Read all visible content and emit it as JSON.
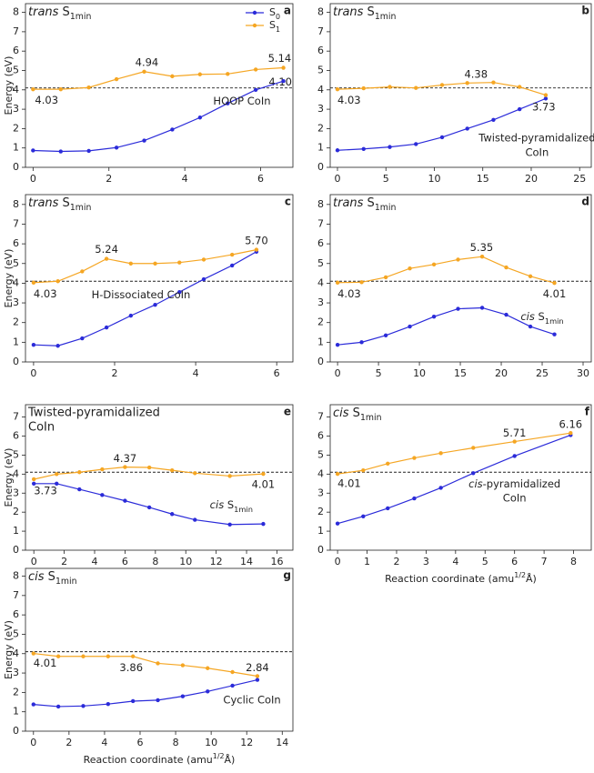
{
  "chart_data": [
    {
      "type": "line",
      "panel": "a",
      "label": {
        "em": "trans",
        "base": " S",
        "sub": "1min"
      },
      "ylabel": "Energy (eV)",
      "x": [
        0,
        0.73,
        1.47,
        2.2,
        2.93,
        3.67,
        4.4,
        5.13,
        5.87,
        6.6
      ],
      "series": [
        {
          "name": {
            "base": "S",
            "sub": "0"
          },
          "color": "#2b2bd9",
          "values": [
            0.87,
            0.82,
            0.85,
            1.02,
            1.38,
            1.95,
            2.57,
            3.3,
            4.0,
            4.45
          ]
        },
        {
          "name": {
            "base": "S",
            "sub": "1"
          },
          "color": "#f5a623",
          "values": [
            4.03,
            4.03,
            4.12,
            4.55,
            4.94,
            4.7,
            4.8,
            4.82,
            5.05,
            5.14
          ]
        }
      ],
      "legend": "upper right",
      "reference_line": 4.1,
      "reference_label": "4.10",
      "annotations": [
        "4.03",
        "4.94",
        "5.14",
        "HOOP CoIn"
      ],
      "xlim": [
        -0.2,
        6.85
      ],
      "xticks": [
        0,
        2,
        4,
        6
      ],
      "ylim": [
        0,
        8.45
      ],
      "yticks": [
        0,
        1,
        2,
        3,
        4,
        5,
        6,
        7,
        8
      ]
    },
    {
      "type": "line",
      "panel": "b",
      "label": {
        "em": "trans",
        "base": " S",
        "sub": "1min"
      },
      "x": [
        0,
        2.7,
        5.4,
        8.1,
        10.8,
        13.4,
        16.1,
        18.8,
        21.5
      ],
      "series": [
        {
          "color": "#2b2bd9",
          "values": [
            0.88,
            0.95,
            1.05,
            1.2,
            1.55,
            2.0,
            2.45,
            3.0,
            3.55
          ]
        },
        {
          "color": "#f5a623",
          "values": [
            4.03,
            4.08,
            4.15,
            4.1,
            4.25,
            4.35,
            4.38,
            4.15,
            3.73
          ]
        }
      ],
      "reference_line": 4.1,
      "annotations": [
        "4.03",
        "4.38",
        "3.73",
        {
          "lines": [
            "Twisted-pyramidalized",
            "CoIn"
          ]
        }
      ],
      "xlim": [
        -0.75,
        26.2
      ],
      "xticks": [
        0,
        5,
        10,
        15,
        20,
        25
      ],
      "ylim": [
        0,
        8.45
      ],
      "yticks": [
        0,
        1,
        2,
        3,
        4,
        5,
        6,
        7,
        8
      ]
    },
    {
      "type": "line",
      "panel": "c",
      "label": {
        "em": "trans",
        "base": " S",
        "sub": "1min"
      },
      "ylabel": "Energy (eV)",
      "x": [
        0,
        0.6,
        1.2,
        1.8,
        2.4,
        3.0,
        3.6,
        4.2,
        4.9,
        5.5
      ],
      "series": [
        {
          "color": "#2b2bd9",
          "values": [
            0.87,
            0.82,
            1.2,
            1.75,
            2.35,
            2.9,
            3.55,
            4.2,
            4.9,
            5.6
          ]
        },
        {
          "color": "#f5a623",
          "values": [
            4.03,
            4.1,
            4.6,
            5.24,
            5.0,
            5.0,
            5.05,
            5.2,
            5.45,
            5.7
          ]
        }
      ],
      "reference_line": 4.1,
      "annotations": [
        "4.03",
        "5.24",
        "5.70",
        "H-Dissociated CoIn"
      ],
      "xlim": [
        -0.2,
        6.4
      ],
      "xticks": [
        0,
        2,
        4,
        6
      ],
      "ylim": [
        0,
        8.5
      ],
      "yticks": [
        0,
        1,
        2,
        3,
        4,
        5,
        6,
        7,
        8
      ]
    },
    {
      "type": "line",
      "panel": "d",
      "label": {
        "em": "trans",
        "base": " S",
        "sub": "1min"
      },
      "x": [
        0,
        2.94,
        5.89,
        8.83,
        11.78,
        14.72,
        17.67,
        20.61,
        23.56,
        26.5
      ],
      "series": [
        {
          "color": "#2b2bd9",
          "values": [
            0.87,
            1.0,
            1.35,
            1.8,
            2.3,
            2.7,
            2.75,
            2.4,
            1.8,
            1.4
          ]
        },
        {
          "color": "#f5a623",
          "values": [
            4.03,
            4.05,
            4.3,
            4.75,
            4.95,
            5.2,
            5.35,
            4.8,
            4.35,
            4.01
          ]
        }
      ],
      "reference_line": 4.1,
      "annotations": [
        "4.03",
        "5.35",
        "4.01",
        {
          "em": "cis",
          "base": " S",
          "sub": "1min"
        }
      ],
      "xlim": [
        -0.9,
        31
      ],
      "xticks": [
        0,
        5,
        10,
        15,
        20,
        25,
        30
      ],
      "ylim": [
        0,
        8.5
      ],
      "yticks": [
        0,
        1,
        2,
        3,
        4,
        5,
        6,
        7,
        8
      ]
    },
    {
      "type": "line",
      "panel": "e",
      "label": {
        "lines": [
          "Twisted-pyramidalized",
          "CoIn"
        ]
      },
      "ylabel": "Energy (eV)",
      "x": [
        0,
        1.5,
        3,
        4.5,
        6,
        7.6,
        9.1,
        10.6,
        12.9,
        15.1
      ],
      "series": [
        {
          "color": "#2b2bd9",
          "values": [
            3.5,
            3.5,
            3.2,
            2.9,
            2.6,
            2.25,
            1.9,
            1.6,
            1.35,
            1.38
          ]
        },
        {
          "color": "#f5a623",
          "values": [
            3.73,
            4.0,
            4.1,
            4.25,
            4.37,
            4.35,
            4.2,
            4.05,
            3.9,
            4.01
          ]
        }
      ],
      "reference_line": 4.1,
      "annotations": [
        "3.73",
        "4.37",
        "4.01",
        {
          "em": "cis",
          "base": " S",
          "sub": "1min"
        }
      ],
      "xlim": [
        -0.55,
        17.05
      ],
      "xticks": [
        0,
        2,
        4,
        6,
        8,
        10,
        12,
        14,
        16
      ],
      "ylim": [
        0,
        7.65
      ],
      "yticks": [
        0,
        1,
        2,
        3,
        4,
        5,
        6,
        7
      ]
    },
    {
      "type": "line",
      "panel": "f",
      "label": {
        "em": "cis",
        "base": " S",
        "sub": "1min"
      },
      "xlabel": {
        "base": "Reaction coordinate (amu",
        "sup": "1/2",
        "rest": "Å)"
      },
      "x": [
        0,
        0.87,
        1.7,
        2.6,
        3.5,
        4.6,
        6.0,
        7.9
      ],
      "series": [
        {
          "color": "#2b2bd9",
          "values": [
            1.4,
            1.78,
            2.2,
            2.72,
            3.28,
            4.05,
            4.95,
            6.05
          ]
        },
        {
          "color": "#f5a623",
          "values": [
            4.01,
            4.2,
            4.55,
            4.85,
            5.1,
            5.38,
            5.71,
            6.16
          ]
        }
      ],
      "reference_line": 4.1,
      "annotations": [
        "4.01",
        "5.71",
        "6.16",
        {
          "lines": [
            {
              "em": "cis",
              "base": "-pyramidalized"
            },
            "CoIn"
          ]
        }
      ],
      "xlim": [
        -0.25,
        8.6
      ],
      "xticks": [
        0,
        1,
        2,
        3,
        4,
        5,
        6,
        7,
        8
      ],
      "ylim": [
        0,
        7.65
      ],
      "yticks": [
        0,
        1,
        2,
        3,
        4,
        5,
        6,
        7
      ]
    },
    {
      "type": "line",
      "panel": "g",
      "label": {
        "em": "cis",
        "base": " S",
        "sub": "1min"
      },
      "ylabel": "Energy (eV)",
      "xlabel": {
        "base": "Reaction coordinate (amu",
        "sup": "1/2",
        "rest": "Å)"
      },
      "x": [
        0,
        1.4,
        2.8,
        4.2,
        5.6,
        7.0,
        8.4,
        9.8,
        11.2,
        12.6
      ],
      "series": [
        {
          "color": "#2b2bd9",
          "values": [
            1.38,
            1.27,
            1.3,
            1.4,
            1.55,
            1.6,
            1.8,
            2.05,
            2.35,
            2.65
          ]
        },
        {
          "color": "#f5a623",
          "values": [
            4.01,
            3.86,
            3.86,
            3.86,
            3.86,
            3.5,
            3.4,
            3.25,
            3.05,
            2.84
          ]
        }
      ],
      "reference_line": 4.1,
      "annotations": [
        "4.01",
        "3.86",
        "2.84",
        "Cyclic CoIn"
      ],
      "xlim": [
        -0.45,
        14.6
      ],
      "xticks": [
        0,
        2,
        4,
        6,
        8,
        10,
        12,
        14
      ],
      "ylim": [
        0,
        8.4
      ],
      "yticks": [
        0,
        1,
        2,
        3,
        4,
        5,
        6,
        7,
        8
      ]
    }
  ]
}
